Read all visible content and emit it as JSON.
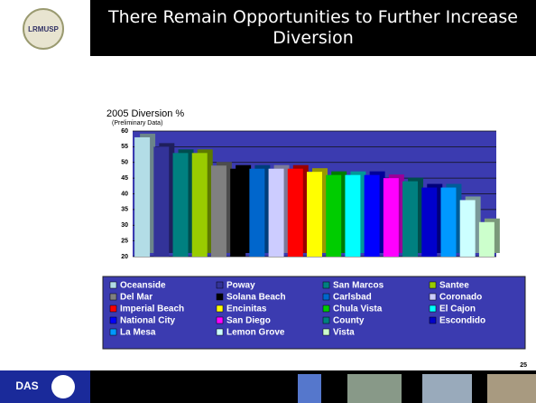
{
  "slide": {
    "logo": "LRMUSP",
    "footer_logo": "DAS",
    "page_number": "25"
  },
  "chart_data": {
    "type": "bar",
    "slide_title": "There Remain Opportunities to Further Increase Diversion",
    "title": "2005 Diversion %",
    "subtitle": "(Preliminary Data)",
    "categories": [
      "Oceanside",
      "Poway",
      "San Marcos",
      "Santee",
      "Del Mar",
      "Solana Beach",
      "Carlsbad",
      "Coronado",
      "Imperial Beach",
      "Encinitas",
      "Chula Vista",
      "El Cajon",
      "National City",
      "San Diego",
      "County",
      "Escondido",
      "La Mesa",
      "Lemon Grove",
      "Vista"
    ],
    "values": [
      58,
      55,
      53,
      53,
      49,
      48,
      48,
      48,
      48,
      47,
      46,
      46,
      46,
      45,
      44,
      42,
      42,
      38,
      31
    ],
    "colors": [
      "#b3dde6",
      "#333399",
      "#008080",
      "#99cc00",
      "#808080",
      "#000000",
      "#0066cc",
      "#ccccff",
      "#ff0000",
      "#ffff00",
      "#00cc00",
      "#00ffff",
      "#0000ff",
      "#ff00ff",
      "#008080",
      "#0000cc",
      "#0099ff",
      "#ccffff",
      "#ccffcc"
    ],
    "ylim": [
      20,
      60
    ],
    "yticks": [
      20,
      25,
      30,
      35,
      40,
      45,
      50,
      55,
      60
    ],
    "grid": true
  }
}
